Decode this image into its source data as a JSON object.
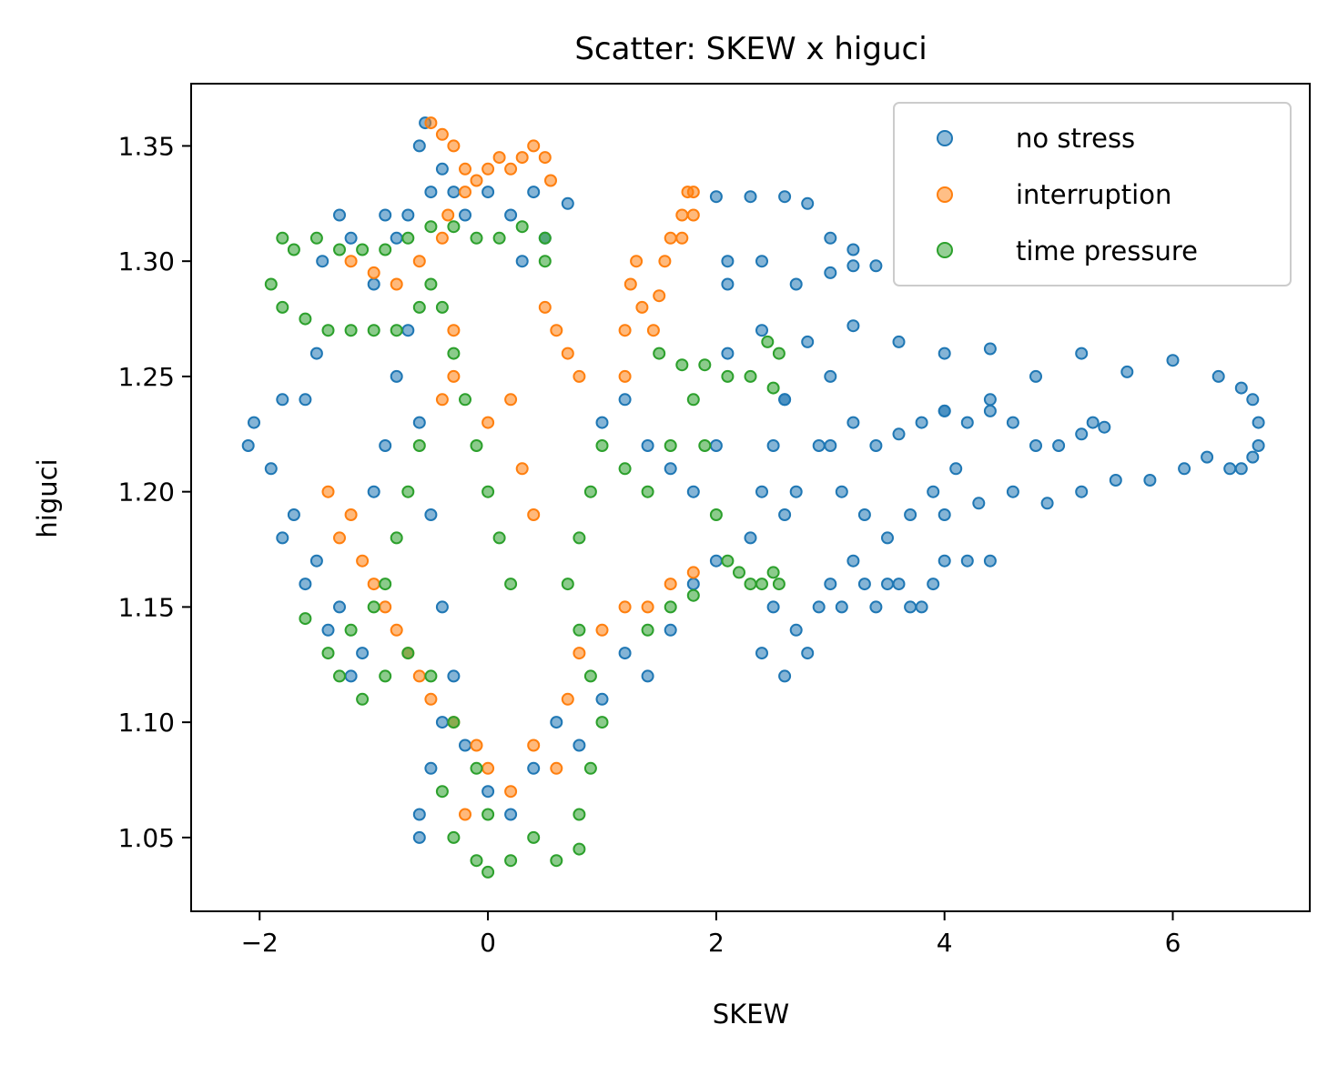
{
  "chart_data": {
    "type": "scatter",
    "title": "Scatter: SKEW x higuci",
    "xlabel": "SKEW",
    "ylabel": "higuci",
    "xlim": [
      -2.6,
      7.2
    ],
    "ylim": [
      1.018,
      1.377
    ],
    "x_ticks": [
      -2,
      0,
      2,
      4,
      6
    ],
    "x_tick_labels": [
      "−2",
      "0",
      "2",
      "4",
      "6"
    ],
    "y_ticks": [
      1.05,
      1.1,
      1.15,
      1.2,
      1.25,
      1.3,
      1.35
    ],
    "y_tick_labels": [
      "1.05",
      "1.10",
      "1.15",
      "1.20",
      "1.25",
      "1.30",
      "1.35"
    ],
    "grid": false,
    "legend_position": "top-right",
    "series": [
      {
        "name": "no stress",
        "color": "#1f77b4",
        "points": [
          [
            -2.1,
            1.22
          ],
          [
            -2.05,
            1.23
          ],
          [
            -1.9,
            1.21
          ],
          [
            -1.8,
            1.24
          ],
          [
            -1.6,
            1.24
          ],
          [
            -1.5,
            1.26
          ],
          [
            -1.45,
            1.3
          ],
          [
            -1.3,
            1.32
          ],
          [
            -1.2,
            1.31
          ],
          [
            -1.0,
            1.29
          ],
          [
            -0.9,
            1.32
          ],
          [
            -0.8,
            1.31
          ],
          [
            -0.7,
            1.32
          ],
          [
            -0.6,
            1.35
          ],
          [
            -0.55,
            1.36
          ],
          [
            -0.5,
            1.33
          ],
          [
            -0.4,
            1.34
          ],
          [
            -0.3,
            1.33
          ],
          [
            -0.2,
            1.32
          ],
          [
            0.0,
            1.33
          ],
          [
            0.2,
            1.32
          ],
          [
            0.3,
            1.3
          ],
          [
            0.4,
            1.33
          ],
          [
            0.5,
            1.31
          ],
          [
            -1.8,
            1.18
          ],
          [
            -1.7,
            1.19
          ],
          [
            -1.6,
            1.16
          ],
          [
            -1.5,
            1.17
          ],
          [
            -1.4,
            1.14
          ],
          [
            -1.3,
            1.15
          ],
          [
            -1.2,
            1.12
          ],
          [
            -1.1,
            1.13
          ],
          [
            -1.0,
            1.2
          ],
          [
            -0.9,
            1.22
          ],
          [
            -0.8,
            1.25
          ],
          [
            -0.7,
            1.27
          ],
          [
            -0.6,
            1.23
          ],
          [
            -0.5,
            1.19
          ],
          [
            -0.4,
            1.15
          ],
          [
            -0.3,
            1.12
          ],
          [
            -0.6,
            1.06
          ],
          [
            -0.6,
            1.05
          ],
          [
            -0.5,
            1.08
          ],
          [
            -0.4,
            1.1
          ],
          [
            -0.2,
            1.09
          ],
          [
            0.0,
            1.07
          ],
          [
            0.2,
            1.06
          ],
          [
            0.4,
            1.08
          ],
          [
            0.6,
            1.1
          ],
          [
            0.8,
            1.09
          ],
          [
            1.0,
            1.11
          ],
          [
            1.2,
            1.13
          ],
          [
            1.4,
            1.12
          ],
          [
            1.6,
            1.14
          ],
          [
            1.8,
            1.16
          ],
          [
            2.0,
            1.17
          ],
          [
            1.0,
            1.23
          ],
          [
            1.2,
            1.24
          ],
          [
            1.4,
            1.22
          ],
          [
            1.6,
            1.21
          ],
          [
            1.8,
            1.2
          ],
          [
            2.0,
            1.22
          ],
          [
            2.1,
            1.26
          ],
          [
            2.1,
            1.29
          ],
          [
            2.3,
            1.18
          ],
          [
            2.4,
            1.2
          ],
          [
            2.5,
            1.22
          ],
          [
            2.6,
            1.24
          ],
          [
            2.6,
            1.19
          ],
          [
            2.5,
            1.15
          ],
          [
            2.4,
            1.13
          ],
          [
            2.6,
            1.12
          ],
          [
            2.7,
            1.14
          ],
          [
            2.8,
            1.13
          ],
          [
            2.9,
            1.15
          ],
          [
            3.0,
            1.16
          ],
          [
            3.1,
            1.15
          ],
          [
            3.2,
            1.17
          ],
          [
            3.3,
            1.16
          ],
          [
            3.4,
            1.15
          ],
          [
            3.5,
            1.16
          ],
          [
            3.6,
            1.16
          ],
          [
            3.7,
            1.15
          ],
          [
            3.8,
            1.15
          ],
          [
            3.9,
            1.16
          ],
          [
            4.0,
            1.17
          ],
          [
            4.2,
            1.17
          ],
          [
            4.4,
            1.17
          ],
          [
            2.7,
            1.2
          ],
          [
            2.9,
            1.22
          ],
          [
            3.1,
            1.2
          ],
          [
            3.3,
            1.19
          ],
          [
            3.5,
            1.18
          ],
          [
            3.7,
            1.19
          ],
          [
            3.9,
            1.2
          ],
          [
            4.1,
            1.21
          ],
          [
            3.0,
            1.22
          ],
          [
            3.2,
            1.23
          ],
          [
            3.4,
            1.22
          ],
          [
            3.6,
            1.225
          ],
          [
            3.8,
            1.23
          ],
          [
            4.0,
            1.235
          ],
          [
            4.2,
            1.23
          ],
          [
            4.4,
            1.235
          ],
          [
            4.6,
            1.23
          ],
          [
            4.8,
            1.22
          ],
          [
            5.0,
            1.22
          ],
          [
            5.2,
            1.225
          ],
          [
            5.4,
            1.228
          ],
          [
            5.3,
            1.23
          ],
          [
            4.0,
            1.19
          ],
          [
            4.3,
            1.195
          ],
          [
            4.6,
            1.2
          ],
          [
            4.9,
            1.195
          ],
          [
            5.2,
            1.2
          ],
          [
            5.5,
            1.205
          ],
          [
            5.8,
            1.205
          ],
          [
            6.1,
            1.21
          ],
          [
            6.3,
            1.215
          ],
          [
            6.5,
            1.21
          ],
          [
            6.6,
            1.21
          ],
          [
            6.7,
            1.215
          ],
          [
            6.75,
            1.22
          ],
          [
            6.75,
            1.23
          ],
          [
            6.7,
            1.24
          ],
          [
            6.6,
            1.245
          ],
          [
            6.4,
            1.25
          ],
          [
            6.0,
            1.257
          ],
          [
            5.6,
            1.252
          ],
          [
            5.2,
            1.26
          ],
          [
            4.8,
            1.25
          ],
          [
            4.4,
            1.24
          ],
          [
            4.0,
            1.235
          ],
          [
            2.1,
            1.3
          ],
          [
            2.4,
            1.3
          ],
          [
            2.7,
            1.29
          ],
          [
            3.0,
            1.295
          ],
          [
            3.2,
            1.298
          ],
          [
            3.4,
            1.298
          ],
          [
            3.2,
            1.305
          ],
          [
            3.0,
            1.31
          ],
          [
            2.8,
            1.325
          ],
          [
            2.6,
            1.328
          ],
          [
            2.3,
            1.328
          ],
          [
            2.0,
            1.328
          ],
          [
            0.7,
            1.325
          ],
          [
            2.4,
            1.27
          ],
          [
            2.8,
            1.265
          ],
          [
            3.2,
            1.272
          ],
          [
            3.6,
            1.265
          ],
          [
            4.0,
            1.26
          ],
          [
            4.4,
            1.262
          ],
          [
            3.0,
            1.25
          ],
          [
            2.6,
            1.24
          ]
        ]
      },
      {
        "name": "interruption",
        "color": "#ff7f0e",
        "points": [
          [
            -0.5,
            1.36
          ],
          [
            -0.4,
            1.355
          ],
          [
            -0.3,
            1.35
          ],
          [
            -0.2,
            1.34
          ],
          [
            -0.1,
            1.335
          ],
          [
            0.0,
            1.34
          ],
          [
            0.1,
            1.345
          ],
          [
            0.2,
            1.34
          ],
          [
            0.3,
            1.345
          ],
          [
            0.4,
            1.35
          ],
          [
            0.5,
            1.345
          ],
          [
            0.55,
            1.335
          ],
          [
            -0.35,
            1.32
          ],
          [
            -0.2,
            1.33
          ],
          [
            1.2,
            1.25
          ],
          [
            1.2,
            1.27
          ],
          [
            1.25,
            1.29
          ],
          [
            1.3,
            1.3
          ],
          [
            1.35,
            1.28
          ],
          [
            1.45,
            1.27
          ],
          [
            1.5,
            1.285
          ],
          [
            1.55,
            1.3
          ],
          [
            1.6,
            1.31
          ],
          [
            1.7,
            1.32
          ],
          [
            1.75,
            1.33
          ],
          [
            1.8,
            1.33
          ],
          [
            1.8,
            1.32
          ],
          [
            1.7,
            1.31
          ],
          [
            -1.2,
            1.3
          ],
          [
            -1.0,
            1.295
          ],
          [
            -0.8,
            1.29
          ],
          [
            -0.6,
            1.3
          ],
          [
            -0.4,
            1.31
          ],
          [
            -0.3,
            1.27
          ],
          [
            -0.4,
            1.24
          ],
          [
            -0.3,
            1.25
          ],
          [
            0.0,
            1.23
          ],
          [
            0.2,
            1.24
          ],
          [
            0.3,
            1.21
          ],
          [
            0.4,
            1.19
          ],
          [
            0.5,
            1.28
          ],
          [
            0.6,
            1.27
          ],
          [
            0.7,
            1.26
          ],
          [
            0.8,
            1.25
          ],
          [
            -1.4,
            1.2
          ],
          [
            -1.3,
            1.18
          ],
          [
            -1.2,
            1.19
          ],
          [
            -1.1,
            1.17
          ],
          [
            -1.0,
            1.16
          ],
          [
            -0.9,
            1.15
          ],
          [
            -0.8,
            1.14
          ],
          [
            -0.7,
            1.13
          ],
          [
            -0.6,
            1.12
          ],
          [
            -0.5,
            1.11
          ],
          [
            -0.3,
            1.1
          ],
          [
            -0.1,
            1.09
          ],
          [
            0.0,
            1.08
          ],
          [
            0.2,
            1.07
          ],
          [
            0.4,
            1.09
          ],
          [
            0.6,
            1.08
          ],
          [
            0.7,
            1.11
          ],
          [
            0.8,
            1.13
          ],
          [
            1.0,
            1.14
          ],
          [
            1.2,
            1.15
          ],
          [
            1.4,
            1.15
          ],
          [
            1.6,
            1.16
          ],
          [
            1.8,
            1.165
          ],
          [
            -0.2,
            1.06
          ]
        ]
      },
      {
        "name": "time pressure",
        "color": "#2ca02c",
        "points": [
          [
            -1.9,
            1.29
          ],
          [
            -1.8,
            1.31
          ],
          [
            -1.7,
            1.305
          ],
          [
            -1.5,
            1.31
          ],
          [
            -1.3,
            1.305
          ],
          [
            -1.1,
            1.305
          ],
          [
            -0.9,
            1.305
          ],
          [
            -0.7,
            1.31
          ],
          [
            -0.5,
            1.315
          ],
          [
            -0.3,
            1.315
          ],
          [
            -0.1,
            1.31
          ],
          [
            0.1,
            1.31
          ],
          [
            0.3,
            1.315
          ],
          [
            0.5,
            1.31
          ],
          [
            0.5,
            1.3
          ],
          [
            -1.8,
            1.28
          ],
          [
            -1.6,
            1.275
          ],
          [
            -1.4,
            1.27
          ],
          [
            -1.2,
            1.27
          ],
          [
            -1.0,
            1.27
          ],
          [
            -0.8,
            1.27
          ],
          [
            -0.6,
            1.28
          ],
          [
            -0.5,
            1.29
          ],
          [
            -0.4,
            1.28
          ],
          [
            -0.3,
            1.26
          ],
          [
            -0.2,
            1.24
          ],
          [
            -0.1,
            1.22
          ],
          [
            0.0,
            1.2
          ],
          [
            0.1,
            1.18
          ],
          [
            0.2,
            1.16
          ],
          [
            -0.6,
            1.22
          ],
          [
            -0.7,
            1.2
          ],
          [
            -0.8,
            1.18
          ],
          [
            -0.9,
            1.16
          ],
          [
            -1.0,
            1.15
          ],
          [
            -1.2,
            1.14
          ],
          [
            -1.4,
            1.13
          ],
          [
            -1.6,
            1.145
          ],
          [
            -1.3,
            1.12
          ],
          [
            -1.1,
            1.11
          ],
          [
            -0.9,
            1.12
          ],
          [
            -0.7,
            1.13
          ],
          [
            -0.5,
            1.12
          ],
          [
            -0.3,
            1.1
          ],
          [
            -0.1,
            1.08
          ],
          [
            0.0,
            1.06
          ],
          [
            -0.4,
            1.07
          ],
          [
            -0.3,
            1.05
          ],
          [
            -0.1,
            1.04
          ],
          [
            0.0,
            1.035
          ],
          [
            0.2,
            1.04
          ],
          [
            0.4,
            1.05
          ],
          [
            0.6,
            1.04
          ],
          [
            0.8,
            1.045
          ],
          [
            0.8,
            1.06
          ],
          [
            0.9,
            1.08
          ],
          [
            1.0,
            1.1
          ],
          [
            0.9,
            1.12
          ],
          [
            0.8,
            1.14
          ],
          [
            0.7,
            1.16
          ],
          [
            0.8,
            1.18
          ],
          [
            0.9,
            1.2
          ],
          [
            1.0,
            1.22
          ],
          [
            1.2,
            1.21
          ],
          [
            1.4,
            1.2
          ],
          [
            1.6,
            1.22
          ],
          [
            1.8,
            1.24
          ],
          [
            1.9,
            1.22
          ],
          [
            2.0,
            1.19
          ],
          [
            2.1,
            1.17
          ],
          [
            2.2,
            1.165
          ],
          [
            2.3,
            1.16
          ],
          [
            2.4,
            1.16
          ],
          [
            2.5,
            1.165
          ],
          [
            2.55,
            1.16
          ],
          [
            1.8,
            1.155
          ],
          [
            1.6,
            1.15
          ],
          [
            1.4,
            1.14
          ],
          [
            1.5,
            1.26
          ],
          [
            1.7,
            1.255
          ],
          [
            1.9,
            1.255
          ],
          [
            2.1,
            1.25
          ],
          [
            2.3,
            1.25
          ],
          [
            2.5,
            1.245
          ],
          [
            2.55,
            1.26
          ],
          [
            2.45,
            1.265
          ]
        ]
      }
    ]
  }
}
